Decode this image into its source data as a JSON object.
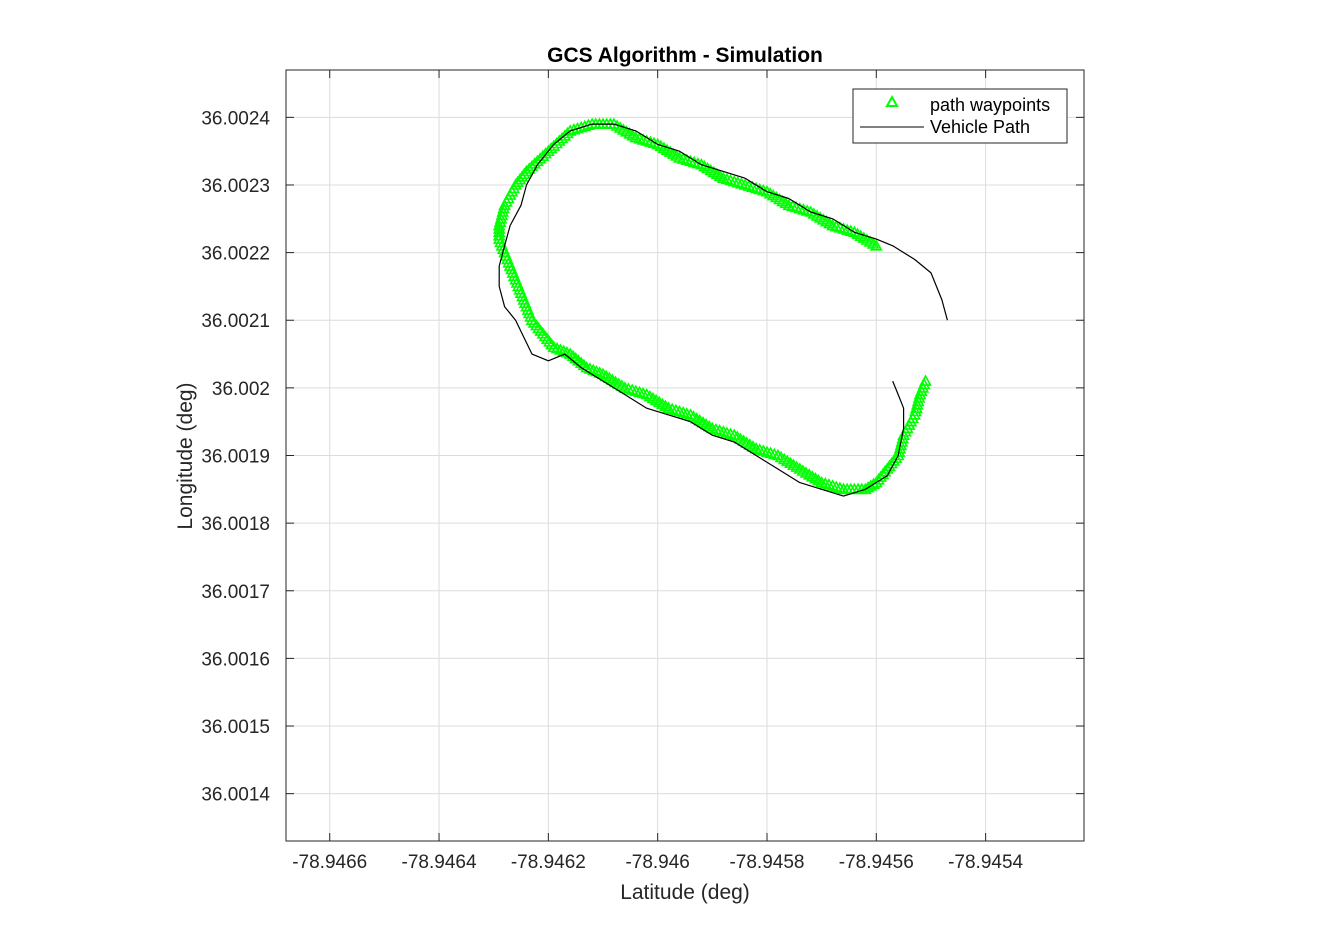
{
  "chart_data": {
    "type": "line",
    "title": "GCS Algorithm - Simulation",
    "xlabel": "Latitude (deg)",
    "ylabel": "Longitude (deg)",
    "xlim": [
      -78.94668,
      -78.94522
    ],
    "ylim": [
      36.00133,
      36.00247
    ],
    "x_ticks": [
      -78.9466,
      -78.9464,
      -78.9462,
      -78.946,
      -78.9458,
      -78.9456,
      -78.9454
    ],
    "x_tick_labels": [
      "-78.9466",
      "-78.9464",
      "-78.9462",
      "-78.946",
      "-78.9458",
      "-78.9456",
      "-78.9454"
    ],
    "y_ticks": [
      36.0014,
      36.0015,
      36.0016,
      36.0017,
      36.0018,
      36.0019,
      36.002,
      36.0021,
      36.0022,
      36.0023,
      36.0024
    ],
    "y_tick_labels": [
      "36.0014",
      "36.0015",
      "36.0016",
      "36.0017",
      "36.0018",
      "36.0019",
      "36.002",
      "36.0021",
      "36.0022",
      "36.0023",
      "36.0024"
    ],
    "grid": true,
    "legend_position": "top-right",
    "series": [
      {
        "name": "path waypoints",
        "style": "triangle-markers",
        "color": "#00ff00",
        "x": [
          -78.9456,
          -78.94564,
          -78.94568,
          -78.94572,
          -78.94576,
          -78.9458,
          -78.94584,
          -78.94588,
          -78.94592,
          -78.94596,
          -78.946,
          -78.94604,
          -78.94608,
          -78.94612,
          -78.94616,
          -78.9462,
          -78.94624,
          -78.94626,
          -78.94628,
          -78.94629,
          -78.94629,
          -78.94628,
          -78.94627,
          -78.94626,
          -78.94625,
          -78.94624,
          -78.94623,
          -78.94621,
          -78.94619,
          -78.94616,
          -78.94613,
          -78.9461,
          -78.94606,
          -78.94602,
          -78.94598,
          -78.94594,
          -78.9459,
          -78.94586,
          -78.94582,
          -78.94578,
          -78.94574,
          -78.9457,
          -78.94566,
          -78.94562,
          -78.9456,
          -78.94558,
          -78.94556,
          -78.94555,
          -78.94553,
          -78.94552,
          -78.94551
        ],
        "y": [
          36.00221,
          36.00223,
          36.00224,
          36.00226,
          36.00227,
          36.00229,
          36.0023,
          36.00231,
          36.00233,
          36.00234,
          36.00236,
          36.00237,
          36.00239,
          36.00239,
          36.00238,
          36.00235,
          36.00232,
          36.0023,
          36.00227,
          36.00224,
          36.00222,
          36.0022,
          36.00218,
          36.00216,
          36.00214,
          36.00212,
          36.0021,
          36.00208,
          36.00206,
          36.00205,
          36.00203,
          36.00202,
          36.002,
          36.00199,
          36.00197,
          36.00196,
          36.00194,
          36.00193,
          36.00191,
          36.0019,
          36.00188,
          36.00186,
          36.00185,
          36.00185,
          36.00186,
          36.00188,
          36.0019,
          36.00193,
          36.00196,
          36.00199,
          36.00201
        ]
      },
      {
        "name": "Vehicle Path",
        "style": "line",
        "color": "#000000",
        "x": [
          -78.94547,
          -78.94548,
          -78.9455,
          -78.94553,
          -78.94557,
          -78.9456,
          -78.94564,
          -78.94568,
          -78.94572,
          -78.94576,
          -78.9458,
          -78.94584,
          -78.94588,
          -78.94592,
          -78.94596,
          -78.946,
          -78.94604,
          -78.94608,
          -78.94612,
          -78.94616,
          -78.94619,
          -78.94622,
          -78.94624,
          -78.94625,
          -78.94627,
          -78.94628,
          -78.94629,
          -78.94629,
          -78.94628,
          -78.94626,
          -78.94623,
          -78.9462,
          -78.94617,
          -78.94614,
          -78.9461,
          -78.94606,
          -78.94602,
          -78.94598,
          -78.94594,
          -78.9459,
          -78.94586,
          -78.94582,
          -78.94578,
          -78.94574,
          -78.9457,
          -78.94566,
          -78.94562,
          -78.94558,
          -78.94556,
          -78.94555,
          -78.94555,
          -78.94556,
          -78.94557
        ],
        "y": [
          36.0021,
          36.00213,
          36.00217,
          36.00219,
          36.00221,
          36.00222,
          36.00223,
          36.00225,
          36.00226,
          36.00228,
          36.00229,
          36.00231,
          36.00232,
          36.00233,
          36.00235,
          36.00236,
          36.00238,
          36.00239,
          36.00239,
          36.00238,
          36.00236,
          36.00233,
          36.0023,
          36.00227,
          36.00224,
          36.00221,
          36.00218,
          36.00215,
          36.00212,
          36.0021,
          36.00205,
          36.00204,
          36.00205,
          36.00203,
          36.00201,
          36.00199,
          36.00197,
          36.00196,
          36.00195,
          36.00193,
          36.00192,
          36.0019,
          36.00188,
          36.00186,
          36.00185,
          36.00184,
          36.00185,
          36.00187,
          36.0019,
          36.00194,
          36.00197,
          36.00199,
          36.00201
        ]
      }
    ]
  }
}
